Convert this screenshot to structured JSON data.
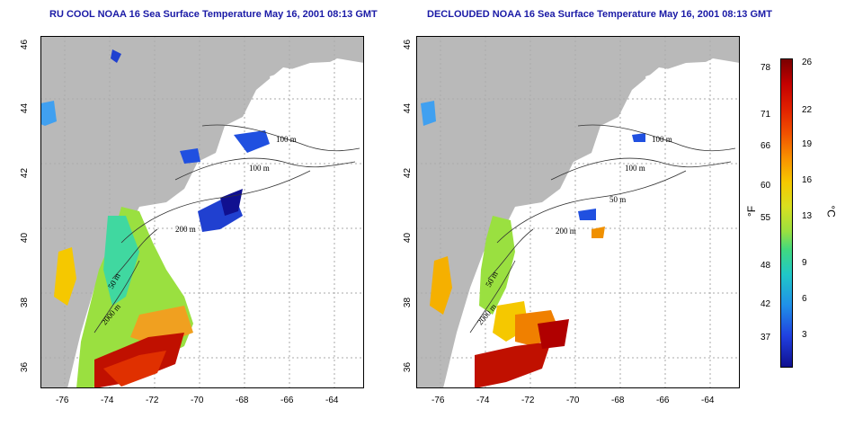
{
  "maps": [
    {
      "title": "RU COOL NOAA 16 Sea Surface Temperature May 16, 2001 08:13 GMT",
      "y_ticks": [
        "46",
        "44",
        "42",
        "40",
        "38",
        "36"
      ],
      "x_ticks": [
        "-76",
        "-74",
        "-72",
        "-70",
        "-68",
        "-66",
        "-64"
      ],
      "contour_labels": [
        "100 m",
        "100 m",
        "200 m",
        "50 m",
        "2000 m"
      ]
    },
    {
      "title": "DECLOUDED NOAA 16 Sea Surface Temperature May 16, 2001 08:13 GMT",
      "y_ticks": [
        "46",
        "44",
        "42",
        "40",
        "38",
        "36"
      ],
      "x_ticks": [
        "-76",
        "-74",
        "-72",
        "-70",
        "-68",
        "-66",
        "-64"
      ],
      "contour_labels": [
        "100 m",
        "100 m",
        "50 m",
        "200 m",
        "50 m",
        "2000 m"
      ]
    }
  ],
  "colorbar": {
    "fahrenheit_labels": [
      "78",
      "71",
      "66",
      "60",
      "55",
      "48",
      "42",
      "37"
    ],
    "celsius_labels": [
      "26",
      "22",
      "19",
      "16",
      "13",
      "9",
      "6",
      "3"
    ],
    "unit_f": "°F",
    "unit_c": "°C"
  },
  "colors": {
    "land": "#b9b9b9",
    "title": "#1a1aa6",
    "grid": "#aaaaaa"
  }
}
